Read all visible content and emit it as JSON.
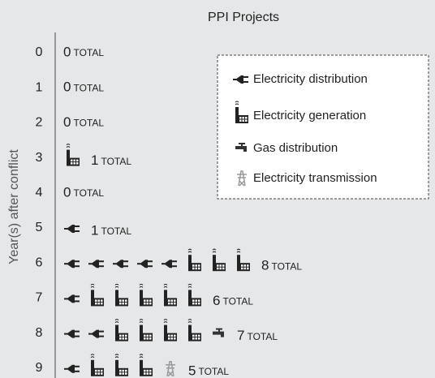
{
  "chart_data": {
    "type": "pictogram",
    "title": "PPI Projects",
    "y_label": "Year(s) after conflict",
    "categories": [
      "0",
      "1",
      "2",
      "3",
      "4",
      "5",
      "6",
      "7",
      "8",
      "9"
    ],
    "series": [
      {
        "name": "Electricity distribution",
        "color": "#222222",
        "values": [
          0,
          0,
          0,
          0,
          0,
          1,
          5,
          1,
          2,
          1
        ]
      },
      {
        "name": "Electricity generation",
        "color": "#222222",
        "values": [
          0,
          0,
          0,
          1,
          0,
          0,
          3,
          5,
          4,
          3
        ]
      },
      {
        "name": "Gas distribution",
        "color": "#333333",
        "values": [
          0,
          0,
          0,
          0,
          0,
          0,
          0,
          0,
          1,
          0
        ]
      },
      {
        "name": "Electricity transmission",
        "color": "#9a9a9a",
        "values": [
          0,
          0,
          0,
          0,
          0,
          0,
          0,
          0,
          0,
          1
        ]
      }
    ],
    "totals": [
      0,
      0,
      0,
      1,
      0,
      1,
      8,
      6,
      7,
      5
    ],
    "total_label": "TOTAL"
  }
}
